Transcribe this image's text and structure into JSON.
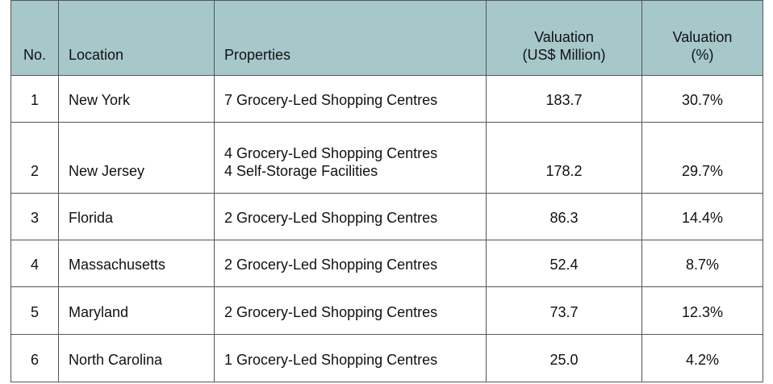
{
  "table": {
    "header": [
      "No.",
      "Location",
      "Properties",
      "Valuation\n(US$ Million)",
      "Valuation\n(%)"
    ],
    "rows": [
      [
        "1",
        "New York",
        "7 Grocery-Led Shopping Centres",
        "183.7",
        "30.7%"
      ],
      [
        "2",
        "New Jersey",
        "4 Grocery-Led Shopping Centres\n4 Self-Storage Facilities",
        "178.2",
        "29.7%"
      ],
      [
        "3",
        "Florida",
        "2 Grocery-Led Shopping Centres",
        "86.3",
        "14.4%"
      ],
      [
        "4",
        "Massachusetts",
        "2 Grocery-Led Shopping Centres",
        "52.4",
        "8.7%"
      ],
      [
        "5",
        "Maryland",
        "2 Grocery-Led Shopping Centres",
        "73.7",
        "12.3%"
      ],
      [
        "6",
        "North Carolina",
        "1 Grocery-Led Shopping Centres",
        "25.0",
        "4.2%"
      ]
    ]
  }
}
